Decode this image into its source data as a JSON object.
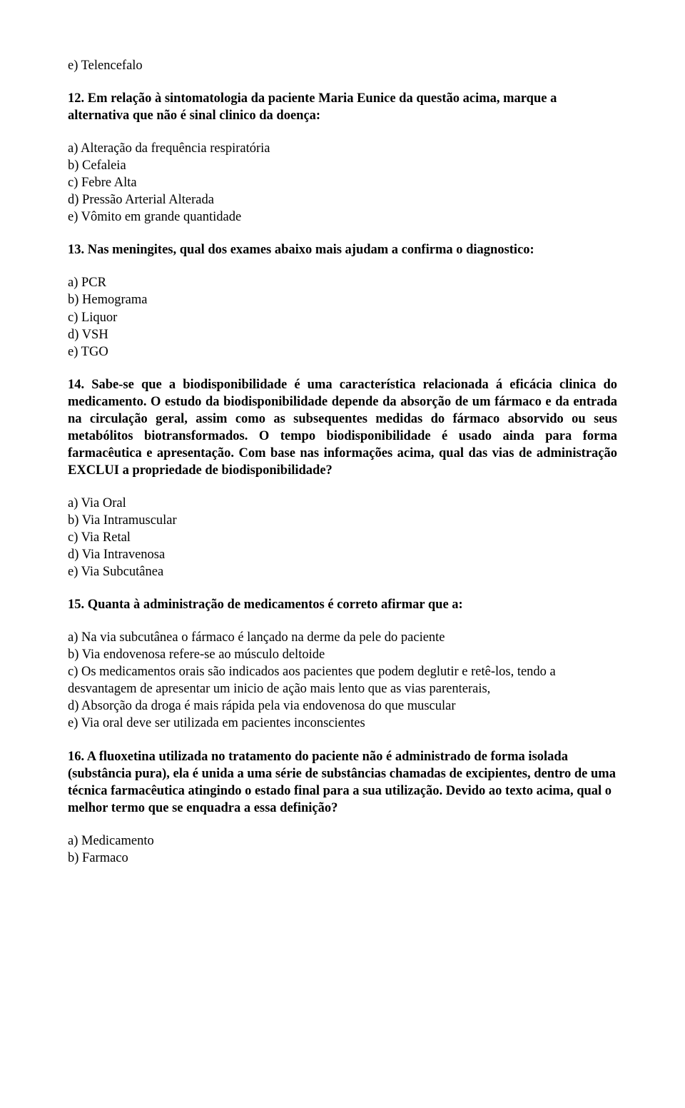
{
  "q11": {
    "opt_e": "e) Telencefalo"
  },
  "q12": {
    "title": "12. Em relação à sintomatologia da paciente Maria Eunice da questão acima, marque a alternativa que não é sinal clinico da doença:",
    "a": "a) Alteração da frequência respiratória",
    "b": "b) Cefaleia",
    "c": "c) Febre Alta",
    "d": "d) Pressão Arterial Alterada",
    "e": "e) Vômito em grande quantidade"
  },
  "q13": {
    "title": "13. Nas meningites, qual dos exames abaixo mais ajudam a confirma o diagnostico:",
    "a": "a) PCR",
    "b": "b) Hemograma",
    "c": "c) Liquor",
    "d": "d) VSH",
    "e": "e) TGO"
  },
  "q14": {
    "title": "14. Sabe-se que a biodisponibilidade é uma característica relacionada á eficácia clinica do medicamento. O estudo da biodisponibilidade depende da absorção de um fármaco e da entrada na circulação geral, assim como as subsequentes medidas do fármaco absorvido ou seus metabólitos biotransformados. O tempo biodisponibilidade é usado ainda para forma farmacêutica e apresentação. Com base nas informações acima, qual das vias de administração EXCLUI a propriedade de biodisponibilidade?",
    "a": "a) Via Oral",
    "b": "b) Via Intramuscular",
    "c": "c) Via Retal",
    "d": "d) Via Intravenosa",
    "e": "e) Via Subcutânea"
  },
  "q15": {
    "title": "15. Quanta à administração de medicamentos é correto afirmar que a:",
    "a": "a) Na via subcutânea o fármaco é lançado na derme da pele do paciente",
    "b": "b) Via endovenosa refere-se ao músculo deltoide",
    "c": "c) Os medicamentos orais são indicados aos pacientes que podem deglutir e retê-los, tendo a desvantagem de apresentar um inicio de ação mais lento que as vias parenterais,",
    "d": "d) Absorção da droga é mais rápida pela via endovenosa do que muscular",
    "e": "e) Via oral deve ser utilizada em pacientes inconscientes"
  },
  "q16": {
    "title": "16. A fluoxetina utilizada no tratamento do paciente não é administrado de forma isolada (substância pura), ela é unida a uma série de substâncias chamadas de excipientes, dentro de uma técnica farmacêutica atingindo o estado final para a sua utilização. Devido ao texto acima, qual o melhor termo que se enquadra a essa definição?",
    "a": "a) Medicamento",
    "b": "b) Farmaco"
  }
}
